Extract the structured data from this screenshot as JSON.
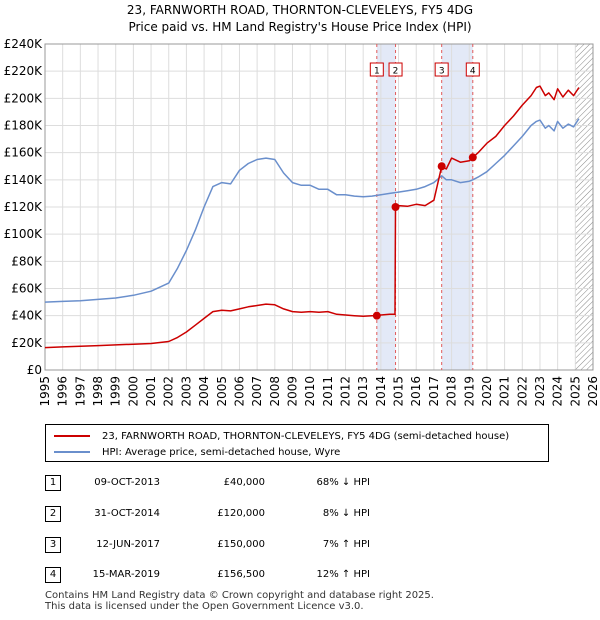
{
  "chart_data": {
    "type": "line",
    "title": "23, FARNWORTH ROAD, THORNTON-CLEVELEYS, FY5 4DG",
    "subtitle": "Price paid vs. HM Land Registry's House Price Index (HPI)",
    "xlabel": "",
    "ylabel": "",
    "xlim": [
      1995,
      2026
    ],
    "ylim": [
      0,
      240000
    ],
    "y_ticks": [
      {
        "value": 0,
        "label": "£0"
      },
      {
        "value": 20000,
        "label": "£20K"
      },
      {
        "value": 40000,
        "label": "£40K"
      },
      {
        "value": 60000,
        "label": "£60K"
      },
      {
        "value": 80000,
        "label": "£80K"
      },
      {
        "value": 100000,
        "label": "£100K"
      },
      {
        "value": 120000,
        "label": "£120K"
      },
      {
        "value": 140000,
        "label": "£140K"
      },
      {
        "value": 160000,
        "label": "£160K"
      },
      {
        "value": 180000,
        "label": "£180K"
      },
      {
        "value": 200000,
        "label": "£200K"
      },
      {
        "value": 220000,
        "label": "£220K"
      },
      {
        "value": 240000,
        "label": "£240K"
      }
    ],
    "x_ticks": [
      "1995",
      "1996",
      "1997",
      "1998",
      "1999",
      "2000",
      "2001",
      "2002",
      "2003",
      "2004",
      "2005",
      "2006",
      "2007",
      "2008",
      "2009",
      "2010",
      "2011",
      "2012",
      "2013",
      "2014",
      "2015",
      "2016",
      "2017",
      "2018",
      "2019",
      "2020",
      "2021",
      "2022",
      "2023",
      "2024",
      "2025",
      "2026"
    ],
    "grid": true,
    "highlight_spans": [
      [
        2013.77,
        2014.83
      ],
      [
        2017.44,
        2019.2
      ]
    ],
    "future_hatch_start": 2025.0,
    "series": [
      {
        "name": "23, FARNWORTH ROAD, THORNTON-CLEVELEYS, FY5 4DG (semi-detached house)",
        "color": "#cc0000",
        "x": [
          1995.0,
          1996.0,
          1997.0,
          1998.0,
          1999.0,
          2000.0,
          2001.0,
          2002.0,
          2002.5,
          2003.0,
          2003.5,
          2004.0,
          2004.5,
          2005.0,
          2005.5,
          2006.0,
          2006.5,
          2007.0,
          2007.5,
          2008.0,
          2008.5,
          2009.0,
          2009.5,
          2010.0,
          2010.5,
          2011.0,
          2011.5,
          2012.0,
          2012.5,
          2013.0,
          2013.5,
          2013.77,
          2014.0,
          2014.5,
          2014.8,
          2014.83,
          2015.0,
          2015.5,
          2016.0,
          2016.5,
          2017.0,
          2017.44,
          2017.7,
          2018.0,
          2018.5,
          2019.0,
          2019.2,
          2019.5,
          2020.0,
          2020.5,
          2021.0,
          2021.5,
          2022.0,
          2022.5,
          2022.8,
          2023.0,
          2023.3,
          2023.5,
          2023.8,
          2024.0,
          2024.3,
          2024.6,
          2024.9,
          2025.2
        ],
        "y": [
          16500,
          17000,
          17500,
          18000,
          18500,
          19000,
          19500,
          21000,
          24000,
          28000,
          33000,
          38000,
          43000,
          44000,
          43500,
          45000,
          46500,
          47500,
          48500,
          48000,
          45000,
          43000,
          42500,
          43000,
          42500,
          43000,
          41000,
          40500,
          40000,
          39500,
          40000,
          40000,
          40500,
          41000,
          41000,
          120000,
          121000,
          120500,
          122000,
          121000,
          125000,
          150000,
          148000,
          156000,
          153000,
          154000,
          156500,
          160000,
          167000,
          172000,
          180000,
          187000,
          195000,
          202000,
          208000,
          209000,
          202000,
          204000,
          199000,
          207000,
          201000,
          206000,
          202000,
          208000
        ]
      },
      {
        "name": "HPI: Average price, semi-detached house, Wyre",
        "color": "#6a8fcc",
        "x": [
          1995.0,
          1996.0,
          1997.0,
          1998.0,
          1999.0,
          2000.0,
          2001.0,
          2002.0,
          2002.5,
          2003.0,
          2003.5,
          2004.0,
          2004.5,
          2005.0,
          2005.5,
          2006.0,
          2006.5,
          2007.0,
          2007.5,
          2008.0,
          2008.5,
          2009.0,
          2009.5,
          2010.0,
          2010.5,
          2011.0,
          2011.5,
          2012.0,
          2012.5,
          2013.0,
          2013.5,
          2014.0,
          2014.5,
          2015.0,
          2015.5,
          2016.0,
          2016.5,
          2017.0,
          2017.44,
          2017.7,
          2018.0,
          2018.5,
          2019.0,
          2019.2,
          2019.5,
          2020.0,
          2020.5,
          2021.0,
          2021.5,
          2022.0,
          2022.5,
          2022.8,
          2023.0,
          2023.3,
          2023.5,
          2023.8,
          2024.0,
          2024.3,
          2024.6,
          2024.9,
          2025.2
        ],
        "y": [
          50000,
          50500,
          51000,
          52000,
          53000,
          55000,
          58000,
          64000,
          75000,
          88000,
          103000,
          120000,
          135000,
          138000,
          137000,
          147000,
          152000,
          155000,
          156000,
          155000,
          145000,
          138000,
          136000,
          136000,
          133000,
          133000,
          129000,
          129000,
          128000,
          127500,
          128000,
          129000,
          130000,
          131000,
          132000,
          133000,
          135000,
          138000,
          143000,
          140000,
          140000,
          138000,
          139000,
          140000,
          142000,
          146000,
          152000,
          158000,
          165000,
          172000,
          180000,
          183000,
          184000,
          178000,
          180000,
          176000,
          183000,
          178000,
          181000,
          179000,
          185000
        ]
      }
    ],
    "markers": [
      {
        "label": "1",
        "x": 2013.77,
        "y": 40000
      },
      {
        "label": "2",
        "x": 2014.83,
        "y": 120000
      },
      {
        "label": "3",
        "x": 2017.44,
        "y": 150000
      },
      {
        "label": "4",
        "x": 2019.2,
        "y": 156500
      }
    ]
  },
  "legend": {
    "property_label": "23, FARNWORTH ROAD, THORNTON-CLEVELEYS, FY5 4DG (semi-detached house)",
    "hpi_label": "HPI: Average price, semi-detached house, Wyre"
  },
  "sales": [
    {
      "num": "1",
      "date": "09-OCT-2013",
      "price": "£40,000",
      "hpi": "68% ↓ HPI"
    },
    {
      "num": "2",
      "date": "31-OCT-2014",
      "price": "£120,000",
      "hpi": "8% ↓ HPI"
    },
    {
      "num": "3",
      "date": "12-JUN-2017",
      "price": "£150,000",
      "hpi": "7% ↑ HPI"
    },
    {
      "num": "4",
      "date": "15-MAR-2019",
      "price": "£156,500",
      "hpi": "12% ↑ HPI"
    }
  ],
  "footer": {
    "line1": "Contains HM Land Registry data © Crown copyright and database right 2025.",
    "line2": "This data is licensed under the Open Government Licence v3.0."
  }
}
